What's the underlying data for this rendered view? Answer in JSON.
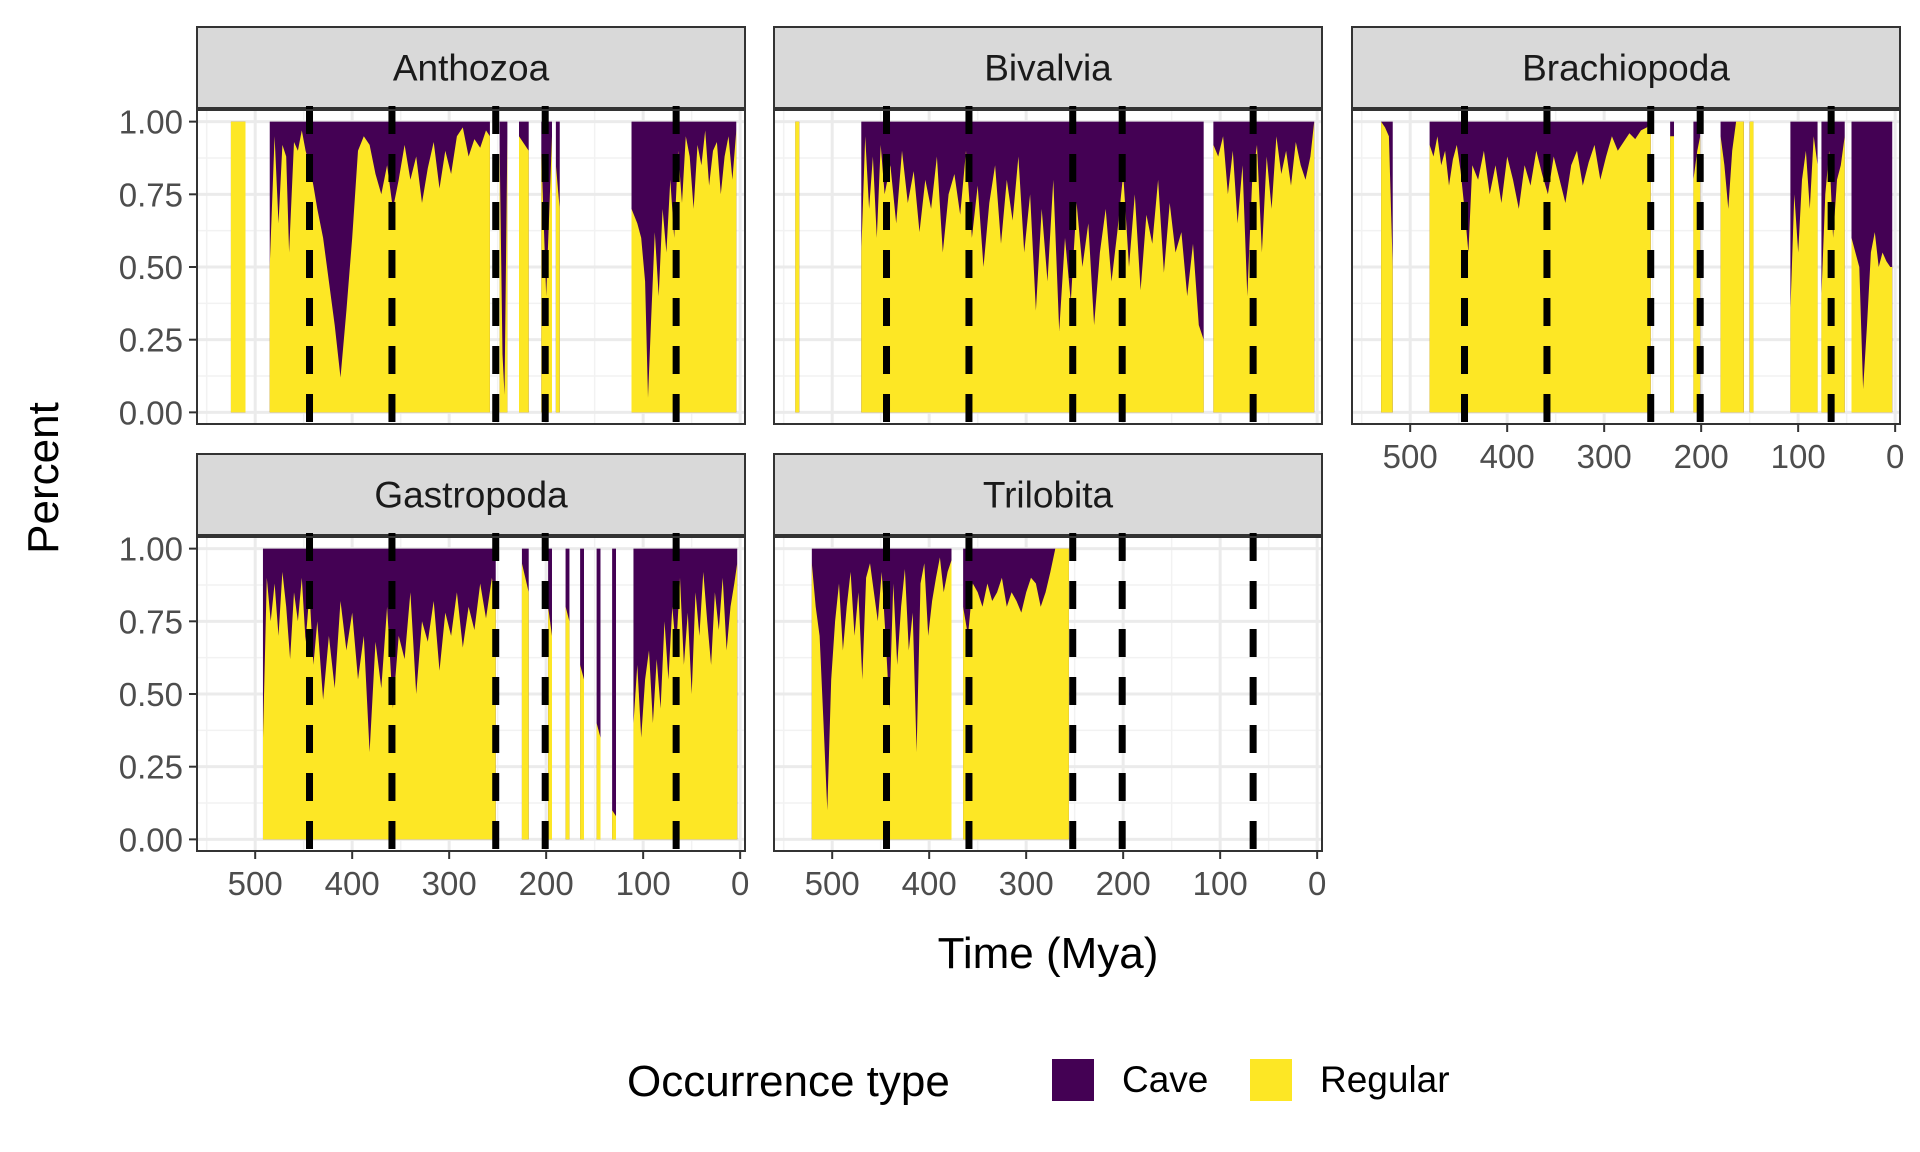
{
  "chart_data": {
    "type": "area",
    "subtype": "stacked-proportion",
    "facets": [
      "Anthozoa",
      "Bivalvia",
      "Brachiopoda",
      "Gastropoda",
      "Trilobita"
    ],
    "xlabel": "Time (Mya)",
    "ylabel": "Percent",
    "x_reversed": true,
    "xlim": [
      560,
      -5
    ],
    "ylim": [
      -0.04,
      1.04
    ],
    "x_ticks": [
      500,
      400,
      300,
      200,
      100,
      0
    ],
    "x_tick_labels": [
      "500",
      "400",
      "300",
      "200",
      "100",
      "0"
    ],
    "y_ticks": [
      0,
      0.25,
      0.5,
      0.75,
      1
    ],
    "y_tick_labels": [
      "0.00",
      "0.25",
      "0.50",
      "0.75",
      "1.00"
    ],
    "grid": true,
    "extinction_lines_x": [
      444,
      359,
      252,
      201,
      66
    ],
    "legend": {
      "title": "Occurrence type",
      "position": "bottom",
      "entries": [
        {
          "label": "Cave",
          "color": "#440154"
        },
        {
          "label": "Regular",
          "color": "#FDE725"
        }
      ]
    },
    "colors": {
      "cave": "#440154",
      "regular": "#FDE725"
    },
    "series_note": "regular = share of Regular occurrences in each time bin (Cave = 1 - regular)",
    "panels": [
      {
        "facet": "Anthozoa",
        "segments": [
          {
            "x": [
              525,
              510
            ],
            "regular": [
              1.0,
              1.0
            ]
          },
          {
            "x": [
              485,
              480,
              476,
              472,
              468,
              465,
              460,
              456,
              452,
              448,
              444,
              440,
              436,
              430,
              424,
              418,
              412,
              406,
              400,
              394,
              388,
              382,
              376,
              370,
              364,
              358,
              352,
              346,
              340,
              334,
              328,
              322,
              316,
              310,
              304,
              298,
              292,
              286,
              280,
              274,
              268,
              262,
              258
            ],
            "regular": [
              0.5,
              0.95,
              0.65,
              0.92,
              0.88,
              0.55,
              0.93,
              0.9,
              0.97,
              0.9,
              0.85,
              0.78,
              0.7,
              0.6,
              0.45,
              0.3,
              0.12,
              0.35,
              0.6,
              0.9,
              0.95,
              0.92,
              0.82,
              0.75,
              0.85,
              0.7,
              0.8,
              0.92,
              0.8,
              0.88,
              0.72,
              0.84,
              0.93,
              0.77,
              0.9,
              0.82,
              0.95,
              0.98,
              0.88,
              0.94,
              0.91,
              0.97,
              0.95
            ]
          },
          {
            "x": [
              248,
              245,
              243,
              240
            ],
            "regular": [
              0.92,
              0.2,
              0.06,
              0.95
            ]
          },
          {
            "x": [
              228,
              218
            ],
            "regular": [
              0.95,
              0.9
            ]
          },
          {
            "x": [
              205,
              200,
              194
            ],
            "regular": [
              0.9,
              0.4,
              0.95
            ]
          },
          {
            "x": [
              190,
              186
            ],
            "regular": [
              0.85,
              0.7
            ]
          },
          {
            "x": [
              112,
              106,
              102,
              98,
              95,
              92,
              88,
              84,
              80,
              76,
              72,
              68,
              64,
              60,
              56,
              52,
              48,
              44,
              40,
              36,
              32,
              28,
              24,
              20,
              16,
              12,
              8,
              4
            ],
            "regular": [
              0.7,
              0.65,
              0.6,
              0.45,
              0.05,
              0.3,
              0.62,
              0.4,
              0.7,
              0.55,
              0.8,
              0.6,
              0.9,
              0.72,
              0.95,
              0.88,
              0.7,
              0.92,
              0.85,
              0.97,
              0.78,
              0.9,
              0.93,
              0.75,
              0.88,
              0.95,
              0.8,
              0.97
            ]
          }
        ]
      },
      {
        "facet": "Bivalvia",
        "segments": [
          {
            "x": [
              538,
              534
            ],
            "regular": [
              1.0,
              1.0
            ]
          },
          {
            "x": [
              470,
              466,
              462,
              458,
              454,
              450,
              446,
              440,
              434,
              428,
              422,
              416,
              410,
              404,
              398,
              392,
              386,
              380,
              374,
              368,
              362,
              356,
              350,
              344,
              338,
              332,
              326,
              320,
              314,
              308,
              302,
              296,
              290,
              284,
              278,
              272,
              266,
              260,
              254,
              248,
              242,
              236,
              230,
              224,
              218,
              212,
              206,
              200,
              194,
              188,
              182,
              176,
              170,
              164,
              158,
              152,
              146,
              140,
              134,
              128,
              122,
              117
            ],
            "regular": [
              0.55,
              0.95,
              0.7,
              0.88,
              0.6,
              0.92,
              0.75,
              0.85,
              0.65,
              0.9,
              0.72,
              0.83,
              0.62,
              0.8,
              0.7,
              0.88,
              0.55,
              0.75,
              0.82,
              0.68,
              0.9,
              0.6,
              0.78,
              0.5,
              0.72,
              0.85,
              0.58,
              0.8,
              0.66,
              0.88,
              0.55,
              0.75,
              0.35,
              0.7,
              0.45,
              0.8,
              0.28,
              0.6,
              0.38,
              0.72,
              0.5,
              0.65,
              0.3,
              0.55,
              0.7,
              0.45,
              0.62,
              0.82,
              0.5,
              0.75,
              0.42,
              0.68,
              0.58,
              0.8,
              0.48,
              0.72,
              0.55,
              0.62,
              0.4,
              0.58,
              0.3,
              0.25
            ]
          },
          {
            "x": [
              107,
              102,
              97,
              92,
              87,
              82,
              77,
              72,
              67,
              62,
              57,
              52,
              47,
              42,
              37,
              32,
              27,
              22,
              17,
              12,
              7,
              3
            ],
            "regular": [
              0.92,
              0.88,
              0.95,
              0.75,
              0.9,
              0.65,
              0.85,
              0.4,
              0.8,
              0.92,
              0.55,
              0.88,
              0.7,
              0.95,
              0.82,
              0.9,
              0.78,
              0.93,
              0.85,
              0.8,
              0.88,
              1.0
            ]
          }
        ]
      },
      {
        "facet": "Brachiopoda",
        "segments": [
          {
            "x": [
              530,
              526,
              522,
              518
            ],
            "regular": [
              1.0,
              0.98,
              0.95,
              0.5
            ]
          },
          {
            "x": [
              480,
              476,
              472,
              468,
              464,
              460,
              456,
              452,
              448,
              444,
              440,
              436,
              430,
              424,
              418,
              412,
              406,
              400,
              394,
              388,
              382,
              376,
              370,
              364,
              358,
              352,
              346,
              340,
              334,
              328,
              322,
              316,
              310,
              304,
              298,
              292,
              286,
              280,
              274,
              268,
              262,
              256,
              252
            ],
            "regular": [
              0.92,
              0.88,
              0.95,
              0.85,
              0.9,
              0.78,
              0.87,
              0.92,
              0.83,
              0.7,
              0.55,
              0.85,
              0.8,
              0.9,
              0.75,
              0.85,
              0.72,
              0.88,
              0.8,
              0.7,
              0.85,
              0.78,
              0.9,
              0.82,
              0.75,
              0.88,
              0.8,
              0.72,
              0.85,
              0.9,
              0.78,
              0.86,
              0.92,
              0.8,
              0.88,
              0.95,
              0.9,
              0.93,
              0.96,
              0.94,
              0.97,
              0.98,
              1.0
            ]
          },
          {
            "x": [
              232,
              228
            ],
            "regular": [
              0.95,
              0.95
            ]
          },
          {
            "x": [
              208,
              204,
              201
            ],
            "regular": [
              0.8,
              0.9,
              0.95
            ]
          },
          {
            "x": [
              180,
              176,
              172,
              168,
              164,
              160,
              156
            ],
            "regular": [
              0.95,
              0.85,
              0.7,
              0.9,
              1.0,
              1.0,
              1.0
            ]
          },
          {
            "x": [
              150,
              146
            ],
            "regular": [
              1.0,
              1.0
            ]
          },
          {
            "x": [
              108,
              104,
              100,
              96,
              92,
              88,
              84,
              80
            ],
            "regular": [
              0.35,
              0.75,
              0.55,
              0.8,
              0.9,
              0.7,
              0.95,
              0.85
            ]
          },
          {
            "x": [
              76,
              72,
              68,
              64,
              60,
              56,
              52
            ],
            "regular": [
              0.4,
              0.75,
              0.9,
              0.6,
              0.8,
              0.85,
              0.95
            ]
          },
          {
            "x": [
              45,
              41,
              37,
              33,
              29,
              25,
              21,
              17,
              13,
              9,
              5,
              3
            ],
            "regular": [
              0.6,
              0.55,
              0.5,
              0.08,
              0.3,
              0.55,
              0.62,
              0.5,
              0.55,
              0.52,
              0.5,
              0.5
            ]
          }
        ]
      },
      {
        "facet": "Gastropoda",
        "segments": [
          {
            "x": [
              492,
              488,
              484,
              480,
              476,
              472,
              468,
              464,
              460,
              456,
              452,
              448,
              444,
              440,
              436,
              430,
              424,
              418,
              412,
              406,
              400,
              394,
              388,
              382,
              376,
              370,
              364,
              358,
              352,
              346,
              340,
              334,
              328,
              322,
              316,
              310,
              304,
              298,
              292,
              286,
              280,
              274,
              268,
              262,
              256,
              252
            ],
            "regular": [
              0.35,
              0.9,
              0.75,
              0.88,
              0.7,
              0.92,
              0.8,
              0.62,
              0.85,
              0.75,
              0.9,
              0.68,
              0.85,
              0.6,
              0.75,
              0.48,
              0.7,
              0.52,
              0.82,
              0.65,
              0.78,
              0.55,
              0.7,
              0.3,
              0.68,
              0.52,
              0.8,
              0.45,
              0.7,
              0.62,
              0.85,
              0.5,
              0.75,
              0.68,
              0.82,
              0.58,
              0.78,
              0.7,
              0.85,
              0.66,
              0.8,
              0.72,
              0.88,
              0.76,
              0.9,
              0.8
            ]
          },
          {
            "x": [
              225,
              218
            ],
            "regular": [
              0.95,
              0.85
            ]
          },
          {
            "x": [
              198,
              194
            ],
            "regular": [
              0.8,
              0.7
            ]
          },
          {
            "x": [
              180,
              176
            ],
            "regular": [
              0.8,
              0.75
            ]
          },
          {
            "x": [
              165,
              161
            ],
            "regular": [
              0.6,
              0.55
            ]
          },
          {
            "x": [
              148,
              144
            ],
            "regular": [
              0.4,
              0.35
            ]
          },
          {
            "x": [
              132,
              128
            ],
            "regular": [
              0.1,
              0.08
            ]
          },
          {
            "x": [
              110,
              106,
              102,
              98,
              94,
              90,
              86,
              82,
              78,
              74,
              70,
              66,
              62,
              58,
              54,
              50,
              46,
              42,
              38,
              34,
              30,
              26,
              22,
              18,
              14,
              10,
              6,
              3
            ],
            "regular": [
              0.4,
              0.6,
              0.35,
              0.55,
              0.65,
              0.4,
              0.62,
              0.45,
              0.75,
              0.55,
              0.8,
              0.65,
              0.9,
              0.6,
              0.78,
              0.5,
              0.85,
              0.7,
              0.92,
              0.75,
              0.6,
              0.85,
              0.72,
              0.9,
              0.65,
              0.8,
              0.88,
              0.95
            ]
          }
        ]
      },
      {
        "facet": "Trilobita",
        "segments": [
          {
            "x": [
              521,
              517,
              513,
              509,
              505,
              501,
              497,
              493,
              489,
              485,
              481,
              477,
              473,
              469,
              465,
              461,
              457,
              453,
              449,
              445,
              441,
              437,
              433,
              429,
              425,
              421,
              417,
              413,
              409,
              405,
              401,
              397,
              393,
              389,
              385,
              381,
              377
            ],
            "regular": [
              0.95,
              0.8,
              0.7,
              0.4,
              0.1,
              0.55,
              0.75,
              0.88,
              0.65,
              0.8,
              0.92,
              0.7,
              0.85,
              0.55,
              0.9,
              0.95,
              0.85,
              0.75,
              0.92,
              0.7,
              0.45,
              0.88,
              0.6,
              0.8,
              0.93,
              0.65,
              0.78,
              0.3,
              0.88,
              0.95,
              0.7,
              0.82,
              0.9,
              0.97,
              0.85,
              0.92,
              0.96
            ]
          },
          {
            "x": [
              365,
              360,
              355,
              350,
              345,
              340,
              335,
              330,
              325,
              320,
              315,
              310,
              305,
              300,
              295,
              290,
              285,
              280,
              275,
              270,
              265,
              260,
              256
            ],
            "regular": [
              0.8,
              0.7,
              0.88,
              0.85,
              0.8,
              0.88,
              0.82,
              0.85,
              0.9,
              0.8,
              0.85,
              0.82,
              0.78,
              0.85,
              0.9,
              0.88,
              0.8,
              0.85,
              0.92,
              1.0,
              1.0,
              1.0,
              1.0
            ]
          }
        ]
      }
    ]
  }
}
